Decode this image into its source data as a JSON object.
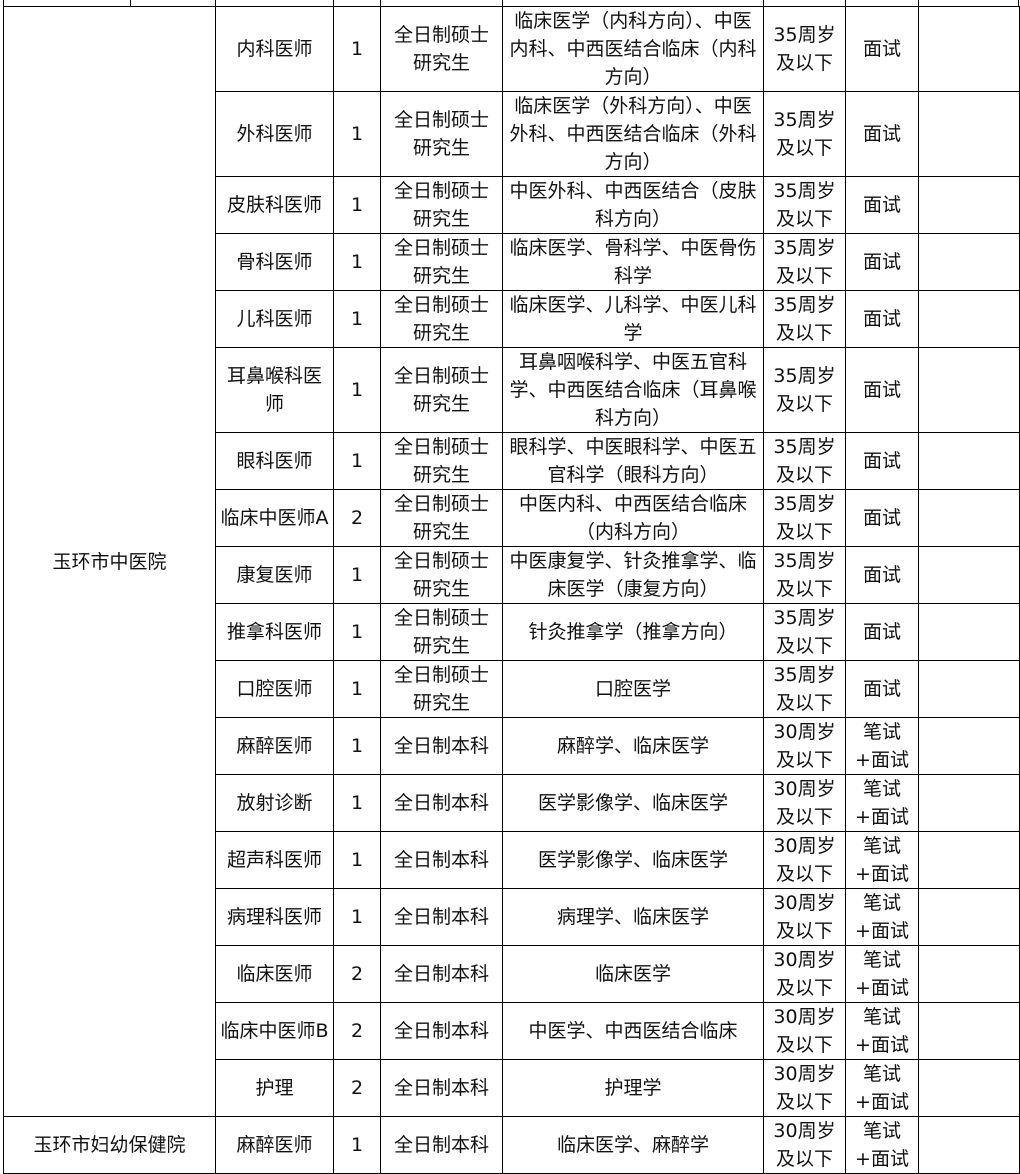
{
  "rows": [
    {
      "hospital": "玉环市中医院",
      "positions": [
        {
          "post": "内科医师",
          "count": "1",
          "education": "全日制硕士研究生",
          "major": "临床医学（内科方向）、中医内科、中西医结合临床（内科方向）",
          "age": "35周岁及以下",
          "exam": "面试",
          "note": ""
        },
        {
          "post": "外科医师",
          "count": "1",
          "education": "全日制硕士研究生",
          "major": "临床医学（外科方向）、中医外科、中西医结合临床（外科方向）",
          "age": "35周岁及以下",
          "exam": "面试",
          "note": ""
        },
        {
          "post": "皮肤科医师",
          "count": "1",
          "education": "全日制硕士研究生",
          "major": "中医外科、中西医结合（皮肤科方向）",
          "age": "35周岁及以下",
          "exam": "面试",
          "note": ""
        },
        {
          "post": "骨科医师",
          "count": "1",
          "education": "全日制硕士研究生",
          "major": "临床医学、骨科学、中医骨伤科学",
          "age": "35周岁及以下",
          "exam": "面试",
          "note": ""
        },
        {
          "post": "儿科医师",
          "count": "1",
          "education": "全日制硕士研究生",
          "major": "临床医学、儿科学、中医儿科学",
          "age": "35周岁及以下",
          "exam": "面试",
          "note": ""
        },
        {
          "post": "耳鼻喉科医师",
          "count": "1",
          "education": "全日制硕士研究生",
          "major": "耳鼻咽喉科学、中医五官科学、中西医结合临床（耳鼻喉科方向）",
          "age": "35周岁及以下",
          "exam": "面试",
          "note": ""
        },
        {
          "post": "眼科医师",
          "count": "1",
          "education": "全日制硕士研究生",
          "major": "眼科学、中医眼科学、中医五官科学（眼科方向）",
          "age": "35周岁及以下",
          "exam": "面试",
          "note": ""
        },
        {
          "post": "临床中医师A",
          "count": "2",
          "education": "全日制硕士研究生",
          "major": "中医内科、中西医结合临床（内科方向）",
          "age": "35周岁及以下",
          "exam": "面试",
          "note": ""
        },
        {
          "post": "康复医师",
          "count": "1",
          "education": "全日制硕士研究生",
          "major": "中医康复学、针灸推拿学、临床医学（康复方向）",
          "age": "35周岁及以下",
          "exam": "面试",
          "note": ""
        },
        {
          "post": "推拿科医师",
          "count": "1",
          "education": "全日制硕士研究生",
          "major": "针灸推拿学（推拿方向）",
          "age": "35周岁及以下",
          "exam": "面试",
          "note": ""
        },
        {
          "post": "口腔医师",
          "count": "1",
          "education": "全日制硕士研究生",
          "major": "口腔医学",
          "age": "35周岁及以下",
          "exam": "面试",
          "note": ""
        },
        {
          "post": "麻醉医师",
          "count": "1",
          "education": "全日制本科",
          "major": "麻醉学、临床医学",
          "age": "30周岁及以下",
          "exam": "笔试+面试",
          "note": ""
        },
        {
          "post": "放射诊断",
          "count": "1",
          "education": "全日制本科",
          "major": "医学影像学、临床医学",
          "age": "30周岁及以下",
          "exam": "笔试+面试",
          "note": ""
        },
        {
          "post": "超声科医师",
          "count": "1",
          "education": "全日制本科",
          "major": "医学影像学、临床医学",
          "age": "30周岁及以下",
          "exam": "笔试+面试",
          "note": ""
        },
        {
          "post": "病理科医师",
          "count": "1",
          "education": "全日制本科",
          "major": "病理学、临床医学",
          "age": "30周岁及以下",
          "exam": "笔试+面试",
          "note": ""
        },
        {
          "post": "临床医师",
          "count": "2",
          "education": "全日制本科",
          "major": "临床医学",
          "age": "30周岁及以下",
          "exam": "笔试+面试",
          "note": ""
        },
        {
          "post": "临床中医师B",
          "count": "2",
          "education": "全日制本科",
          "major": "中医学、中西医结合临床",
          "age": "30周岁及以下",
          "exam": "笔试+面试",
          "note": ""
        },
        {
          "post": "护理",
          "count": "2",
          "education": "全日制本科",
          "major": "护理学",
          "age": "30周岁及以下",
          "exam": "笔试+面试",
          "note": ""
        }
      ]
    },
    {
      "hospital": "玉环市妇幼保健院",
      "positions": [
        {
          "post": "麻醉医师",
          "count": "1",
          "education": "全日制本科",
          "major": "临床医学、麻醉学",
          "age": "30周岁及以下",
          "exam": "笔试+面试",
          "note": ""
        }
      ]
    }
  ]
}
